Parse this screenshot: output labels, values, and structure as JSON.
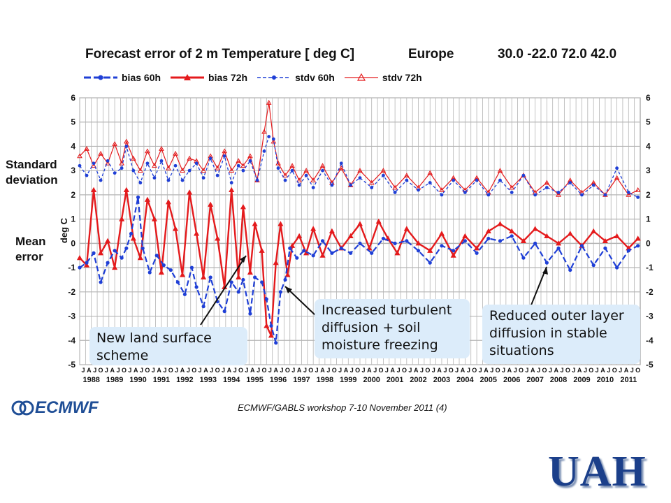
{
  "header": {
    "title": "Forecast error of 2 m Temperature [ deg C]",
    "region": "Europe",
    "coords": "30.0  -22.0  72.0  42.0"
  },
  "annotations": {
    "std_label_1": "Standard",
    "std_label_2": "deviation",
    "mean_label_1": "Mean",
    "mean_label_2": "error",
    "callout_land_1": "New land surface",
    "callout_land_2": "scheme",
    "callout_turb_1": "Increased turbulent",
    "callout_turb_2": "diffusion + soil",
    "callout_turb_3": "moisture freezing",
    "callout_outer_1": "Reduced outer layer",
    "callout_outer_2": "diffusion in stable",
    "callout_outer_3": "situations"
  },
  "footer": {
    "workshop": "ECMWF/GABLS workshop 7-10 November 2011  (4)",
    "logo_left": "ECMWF",
    "logo_right": "UAH"
  },
  "colors": {
    "blue": "#1f3fd6",
    "red": "#e41a1c",
    "grid": "#b4b4b4"
  },
  "chart_data": {
    "type": "line",
    "ylabel": "deg C",
    "ylim": [
      -5,
      6
    ],
    "yticks": [
      -5,
      -4,
      -3,
      -2,
      -1,
      0,
      1,
      2,
      3,
      4,
      5,
      6
    ],
    "xlim": [
      1988.0,
      2012.0
    ],
    "month_ticks": [
      "J",
      "A",
      "J",
      "O"
    ],
    "years": [
      "1988",
      "1989",
      "1990",
      "1991",
      "1992",
      "1993",
      "1994",
      "1995",
      "1996",
      "1997",
      "1998",
      "1999",
      "2000",
      "2001",
      "2002",
      "2003",
      "2004",
      "2005",
      "2006",
      "2007",
      "2008",
      "2009",
      "2010",
      "2011"
    ],
    "grid": true,
    "legend": "top",
    "series": [
      {
        "name": "bias 60h",
        "style": "solid-dot",
        "color": "#1f3fd6",
        "points": [
          [
            1988.0,
            -1.0
          ],
          [
            1988.3,
            -0.8
          ],
          [
            1988.6,
            -0.4
          ],
          [
            1988.9,
            -1.6
          ],
          [
            1989.2,
            -0.8
          ],
          [
            1989.5,
            -0.3
          ],
          [
            1989.8,
            -0.6
          ],
          [
            1990.0,
            -0.2
          ],
          [
            1990.2,
            0.4
          ],
          [
            1990.5,
            1.9
          ],
          [
            1990.7,
            -0.2
          ],
          [
            1991.0,
            -1.2
          ],
          [
            1991.3,
            -0.5
          ],
          [
            1991.6,
            -0.9
          ],
          [
            1991.9,
            -1.1
          ],
          [
            1992.2,
            -1.6
          ],
          [
            1992.5,
            -2.1
          ],
          [
            1992.8,
            -1.0
          ],
          [
            1993.0,
            -1.8
          ],
          [
            1993.3,
            -2.6
          ],
          [
            1993.6,
            -1.4
          ],
          [
            1993.9,
            -2.4
          ],
          [
            1994.2,
            -2.8
          ],
          [
            1994.5,
            -1.6
          ],
          [
            1994.8,
            -2.0
          ],
          [
            1995.0,
            -1.5
          ],
          [
            1995.3,
            -2.9
          ],
          [
            1995.5,
            -1.4
          ],
          [
            1995.8,
            -1.6
          ],
          [
            1996.0,
            -2.3
          ],
          [
            1996.2,
            -3.4
          ],
          [
            1996.4,
            -4.1
          ],
          [
            1996.6,
            -2.0
          ],
          [
            1996.8,
            -1.5
          ],
          [
            1997.0,
            -0.2
          ],
          [
            1997.3,
            -0.6
          ],
          [
            1997.6,
            -0.3
          ],
          [
            1998.0,
            -0.5
          ],
          [
            1998.4,
            0.1
          ],
          [
            1998.8,
            -0.4
          ],
          [
            1999.2,
            -0.2
          ],
          [
            1999.6,
            -0.4
          ],
          [
            2000.0,
            0.0
          ],
          [
            2000.5,
            -0.4
          ],
          [
            2001.0,
            0.2
          ],
          [
            2001.5,
            0.0
          ],
          [
            2002.0,
            0.1
          ],
          [
            2002.5,
            -0.3
          ],
          [
            2003.0,
            -0.8
          ],
          [
            2003.5,
            -0.1
          ],
          [
            2004.0,
            -0.3
          ],
          [
            2004.5,
            0.1
          ],
          [
            2005.0,
            -0.4
          ],
          [
            2005.5,
            0.2
          ],
          [
            2006.0,
            0.1
          ],
          [
            2006.5,
            0.3
          ],
          [
            2007.0,
            -0.6
          ],
          [
            2007.5,
            0.0
          ],
          [
            2008.0,
            -0.8
          ],
          [
            2008.5,
            -0.2
          ],
          [
            2009.0,
            -1.1
          ],
          [
            2009.5,
            -0.1
          ],
          [
            2010.0,
            -0.9
          ],
          [
            2010.5,
            -0.2
          ],
          [
            2011.0,
            -1.0
          ],
          [
            2011.5,
            -0.3
          ],
          [
            2011.9,
            -0.1
          ]
        ]
      },
      {
        "name": "bias 72h",
        "style": "solid-tri",
        "color": "#e41a1c",
        "points": [
          [
            1988.0,
            -0.6
          ],
          [
            1988.3,
            -0.9
          ],
          [
            1988.6,
            2.2
          ],
          [
            1988.9,
            -0.4
          ],
          [
            1989.2,
            0.1
          ],
          [
            1989.5,
            -1.0
          ],
          [
            1989.8,
            1.0
          ],
          [
            1990.0,
            2.2
          ],
          [
            1990.3,
            0.2
          ],
          [
            1990.6,
            -0.6
          ],
          [
            1990.9,
            1.8
          ],
          [
            1991.2,
            1.0
          ],
          [
            1991.5,
            -1.2
          ],
          [
            1991.8,
            1.7
          ],
          [
            1992.1,
            0.6
          ],
          [
            1992.4,
            -1.3
          ],
          [
            1992.7,
            2.1
          ],
          [
            1993.0,
            0.4
          ],
          [
            1993.3,
            -1.4
          ],
          [
            1993.6,
            1.6
          ],
          [
            1993.9,
            0.2
          ],
          [
            1994.2,
            -1.8
          ],
          [
            1994.5,
            2.2
          ],
          [
            1994.8,
            -1.4
          ],
          [
            1995.0,
            1.5
          ],
          [
            1995.3,
            -1.2
          ],
          [
            1995.5,
            0.8
          ],
          [
            1995.8,
            -0.3
          ],
          [
            1996.0,
            -3.4
          ],
          [
            1996.2,
            -3.8
          ],
          [
            1996.4,
            -0.8
          ],
          [
            1996.6,
            0.8
          ],
          [
            1996.9,
            -1.3
          ],
          [
            1997.1,
            -0.1
          ],
          [
            1997.4,
            0.3
          ],
          [
            1997.7,
            -0.4
          ],
          [
            1998.0,
            0.6
          ],
          [
            1998.4,
            -0.5
          ],
          [
            1998.8,
            0.5
          ],
          [
            1999.2,
            -0.2
          ],
          [
            1999.6,
            0.3
          ],
          [
            2000.0,
            0.8
          ],
          [
            2000.4,
            -0.2
          ],
          [
            2000.8,
            0.9
          ],
          [
            2001.2,
            0.2
          ],
          [
            2001.6,
            -0.4
          ],
          [
            2002.0,
            0.6
          ],
          [
            2002.5,
            0.0
          ],
          [
            2003.0,
            -0.3
          ],
          [
            2003.5,
            0.4
          ],
          [
            2004.0,
            -0.5
          ],
          [
            2004.5,
            0.3
          ],
          [
            2005.0,
            -0.2
          ],
          [
            2005.5,
            0.5
          ],
          [
            2006.0,
            0.8
          ],
          [
            2006.5,
            0.5
          ],
          [
            2007.0,
            0.1
          ],
          [
            2007.5,
            0.6
          ],
          [
            2008.0,
            0.3
          ],
          [
            2008.5,
            0.0
          ],
          [
            2009.0,
            0.4
          ],
          [
            2009.5,
            -0.1
          ],
          [
            2010.0,
            0.5
          ],
          [
            2010.5,
            0.1
          ],
          [
            2011.0,
            0.3
          ],
          [
            2011.5,
            -0.2
          ],
          [
            2011.9,
            0.2
          ]
        ]
      },
      {
        "name": "stdv 60h",
        "style": "dashed-dot",
        "color": "#1f3fd6",
        "points": [
          [
            1988.0,
            3.2
          ],
          [
            1988.3,
            2.8
          ],
          [
            1988.6,
            3.3
          ],
          [
            1988.9,
            2.6
          ],
          [
            1989.2,
            3.4
          ],
          [
            1989.5,
            2.9
          ],
          [
            1989.8,
            3.1
          ],
          [
            1990.0,
            4.0
          ],
          [
            1990.3,
            3.0
          ],
          [
            1990.6,
            2.5
          ],
          [
            1990.9,
            3.3
          ],
          [
            1991.2,
            2.7
          ],
          [
            1991.5,
            3.4
          ],
          [
            1991.8,
            2.6
          ],
          [
            1992.1,
            3.2
          ],
          [
            1992.4,
            2.6
          ],
          [
            1992.7,
            3.0
          ],
          [
            1993.0,
            3.3
          ],
          [
            1993.3,
            2.7
          ],
          [
            1993.6,
            3.5
          ],
          [
            1993.9,
            2.8
          ],
          [
            1994.2,
            3.6
          ],
          [
            1994.5,
            2.5
          ],
          [
            1994.8,
            3.2
          ],
          [
            1995.0,
            3.0
          ],
          [
            1995.3,
            3.4
          ],
          [
            1995.6,
            2.6
          ],
          [
            1995.9,
            3.8
          ],
          [
            1996.1,
            4.4
          ],
          [
            1996.3,
            4.3
          ],
          [
            1996.5,
            3.1
          ],
          [
            1996.8,
            2.6
          ],
          [
            1997.1,
            3.0
          ],
          [
            1997.4,
            2.4
          ],
          [
            1997.7,
            2.8
          ],
          [
            1998.0,
            2.3
          ],
          [
            1998.4,
            3.0
          ],
          [
            1998.8,
            2.4
          ],
          [
            1999.2,
            3.3
          ],
          [
            1999.6,
            2.4
          ],
          [
            2000.0,
            2.7
          ],
          [
            2000.5,
            2.3
          ],
          [
            2001.0,
            2.8
          ],
          [
            2001.5,
            2.1
          ],
          [
            2002.0,
            2.6
          ],
          [
            2002.5,
            2.2
          ],
          [
            2003.0,
            2.5
          ],
          [
            2003.5,
            2.0
          ],
          [
            2004.0,
            2.6
          ],
          [
            2004.5,
            2.1
          ],
          [
            2005.0,
            2.6
          ],
          [
            2005.5,
            2.0
          ],
          [
            2006.0,
            2.6
          ],
          [
            2006.5,
            2.1
          ],
          [
            2007.0,
            2.8
          ],
          [
            2007.5,
            2.0
          ],
          [
            2008.0,
            2.3
          ],
          [
            2008.5,
            2.1
          ],
          [
            2009.0,
            2.5
          ],
          [
            2009.5,
            2.0
          ],
          [
            2010.0,
            2.4
          ],
          [
            2010.5,
            2.0
          ],
          [
            2011.0,
            3.1
          ],
          [
            2011.5,
            2.1
          ],
          [
            2011.9,
            1.9
          ]
        ]
      },
      {
        "name": "stdv 72h",
        "style": "thin-tri",
        "color": "#e41a1c",
        "points": [
          [
            1988.0,
            3.6
          ],
          [
            1988.3,
            3.9
          ],
          [
            1988.6,
            3.2
          ],
          [
            1988.9,
            3.7
          ],
          [
            1989.2,
            3.3
          ],
          [
            1989.5,
            4.1
          ],
          [
            1989.8,
            3.3
          ],
          [
            1990.0,
            4.2
          ],
          [
            1990.3,
            3.5
          ],
          [
            1990.6,
            3.0
          ],
          [
            1990.9,
            3.8
          ],
          [
            1991.2,
            3.2
          ],
          [
            1991.5,
            3.9
          ],
          [
            1991.8,
            3.1
          ],
          [
            1992.1,
            3.7
          ],
          [
            1992.4,
            3.0
          ],
          [
            1992.7,
            3.5
          ],
          [
            1993.0,
            3.4
          ],
          [
            1993.3,
            3.0
          ],
          [
            1993.6,
            3.6
          ],
          [
            1993.9,
            3.1
          ],
          [
            1994.2,
            3.8
          ],
          [
            1994.5,
            3.0
          ],
          [
            1994.8,
            3.4
          ],
          [
            1995.0,
            3.2
          ],
          [
            1995.3,
            3.6
          ],
          [
            1995.6,
            2.6
          ],
          [
            1995.9,
            4.6
          ],
          [
            1996.1,
            5.8
          ],
          [
            1996.3,
            4.2
          ],
          [
            1996.5,
            3.3
          ],
          [
            1996.8,
            2.8
          ],
          [
            1997.1,
            3.2
          ],
          [
            1997.4,
            2.6
          ],
          [
            1997.7,
            3.0
          ],
          [
            1998.0,
            2.6
          ],
          [
            1998.4,
            3.2
          ],
          [
            1998.8,
            2.5
          ],
          [
            1999.2,
            3.1
          ],
          [
            1999.6,
            2.4
          ],
          [
            2000.0,
            3.0
          ],
          [
            2000.5,
            2.5
          ],
          [
            2001.0,
            3.0
          ],
          [
            2001.5,
            2.3
          ],
          [
            2002.0,
            2.8
          ],
          [
            2002.5,
            2.3
          ],
          [
            2003.0,
            2.9
          ],
          [
            2003.5,
            2.2
          ],
          [
            2004.0,
            2.7
          ],
          [
            2004.5,
            2.2
          ],
          [
            2005.0,
            2.7
          ],
          [
            2005.5,
            2.1
          ],
          [
            2006.0,
            3.0
          ],
          [
            2006.5,
            2.3
          ],
          [
            2007.0,
            2.8
          ],
          [
            2007.5,
            2.1
          ],
          [
            2008.0,
            2.5
          ],
          [
            2008.5,
            2.0
          ],
          [
            2009.0,
            2.6
          ],
          [
            2009.5,
            2.1
          ],
          [
            2010.0,
            2.5
          ],
          [
            2010.5,
            2.0
          ],
          [
            2011.0,
            2.7
          ],
          [
            2011.5,
            2.0
          ],
          [
            2011.9,
            2.2
          ]
        ]
      }
    ]
  }
}
